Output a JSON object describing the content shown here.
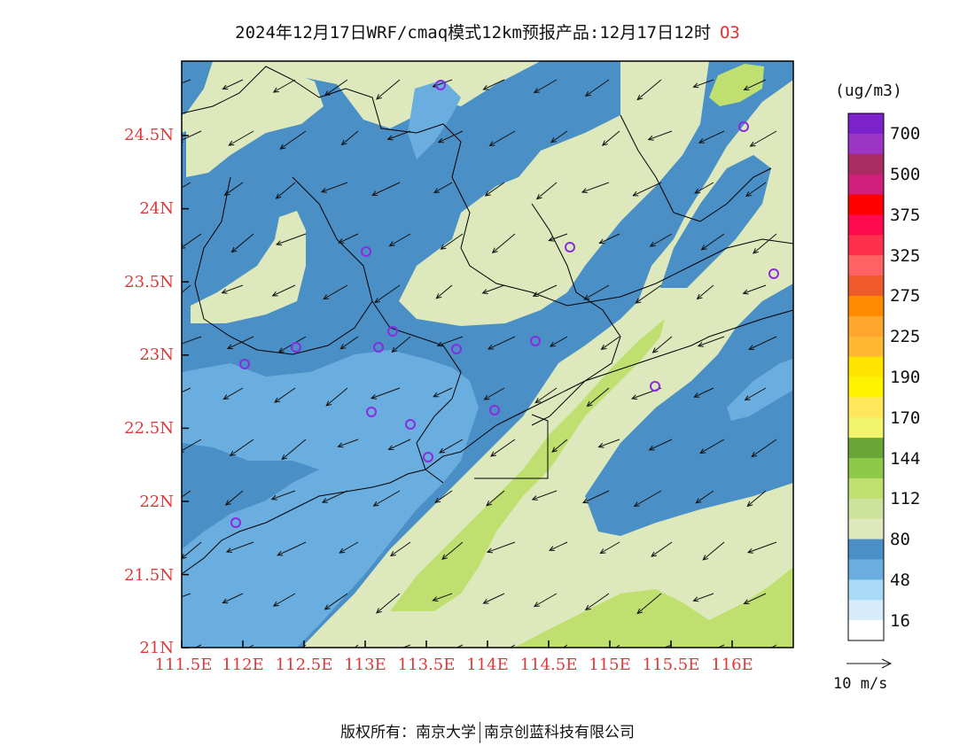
{
  "header": {
    "title": "2024年12月17日WRF/cmaq模式12km预报产品:12月17日12时",
    "species": "O3"
  },
  "axes": {
    "lat_labels": [
      "24.5N",
      "24N",
      "23.5N",
      "23N",
      "22.5N",
      "22N",
      "21.5N",
      "21N"
    ],
    "lon_labels": [
      "111.5E",
      "112E",
      "112.5E",
      "113E",
      "113.5E",
      "114E",
      "114.5E",
      "115E",
      "115.5E",
      "116E"
    ],
    "lat_range": [
      21.0,
      25.0
    ],
    "lon_range": [
      111.5,
      116.5
    ]
  },
  "legend": {
    "unit": "(ug/m3)",
    "labels": [
      "700",
      "500",
      "375",
      "325",
      "275",
      "225",
      "190",
      "170",
      "144",
      "112",
      "80",
      "48",
      "16"
    ],
    "colors": [
      "#7b22cc",
      "#9a35c6",
      "#aa2c62",
      "#cf1f7b",
      "#ff0000",
      "#ff0a4e",
      "#ff2f4e",
      "#ff6262",
      "#ee5a2a",
      "#ff8a00",
      "#ffa62e",
      "#ffb832",
      "#ffe400",
      "#fff200",
      "#ffe65a",
      "#f2f56c",
      "#6aa538",
      "#8ec94a",
      "#bfe070",
      "#cde29c",
      "#dde9bc",
      "#4a8fc6",
      "#6aaee0",
      "#a9daf5",
      "#d6ecfa",
      "#ffffff"
    ]
  },
  "wind": {
    "reference_label": "10 m/s",
    "direction": "northeasterly"
  },
  "stations": "violet-open-circles",
  "footer": {
    "left": "版权所有：南京大学",
    "right": "南京创蓝科技有限公司"
  }
}
